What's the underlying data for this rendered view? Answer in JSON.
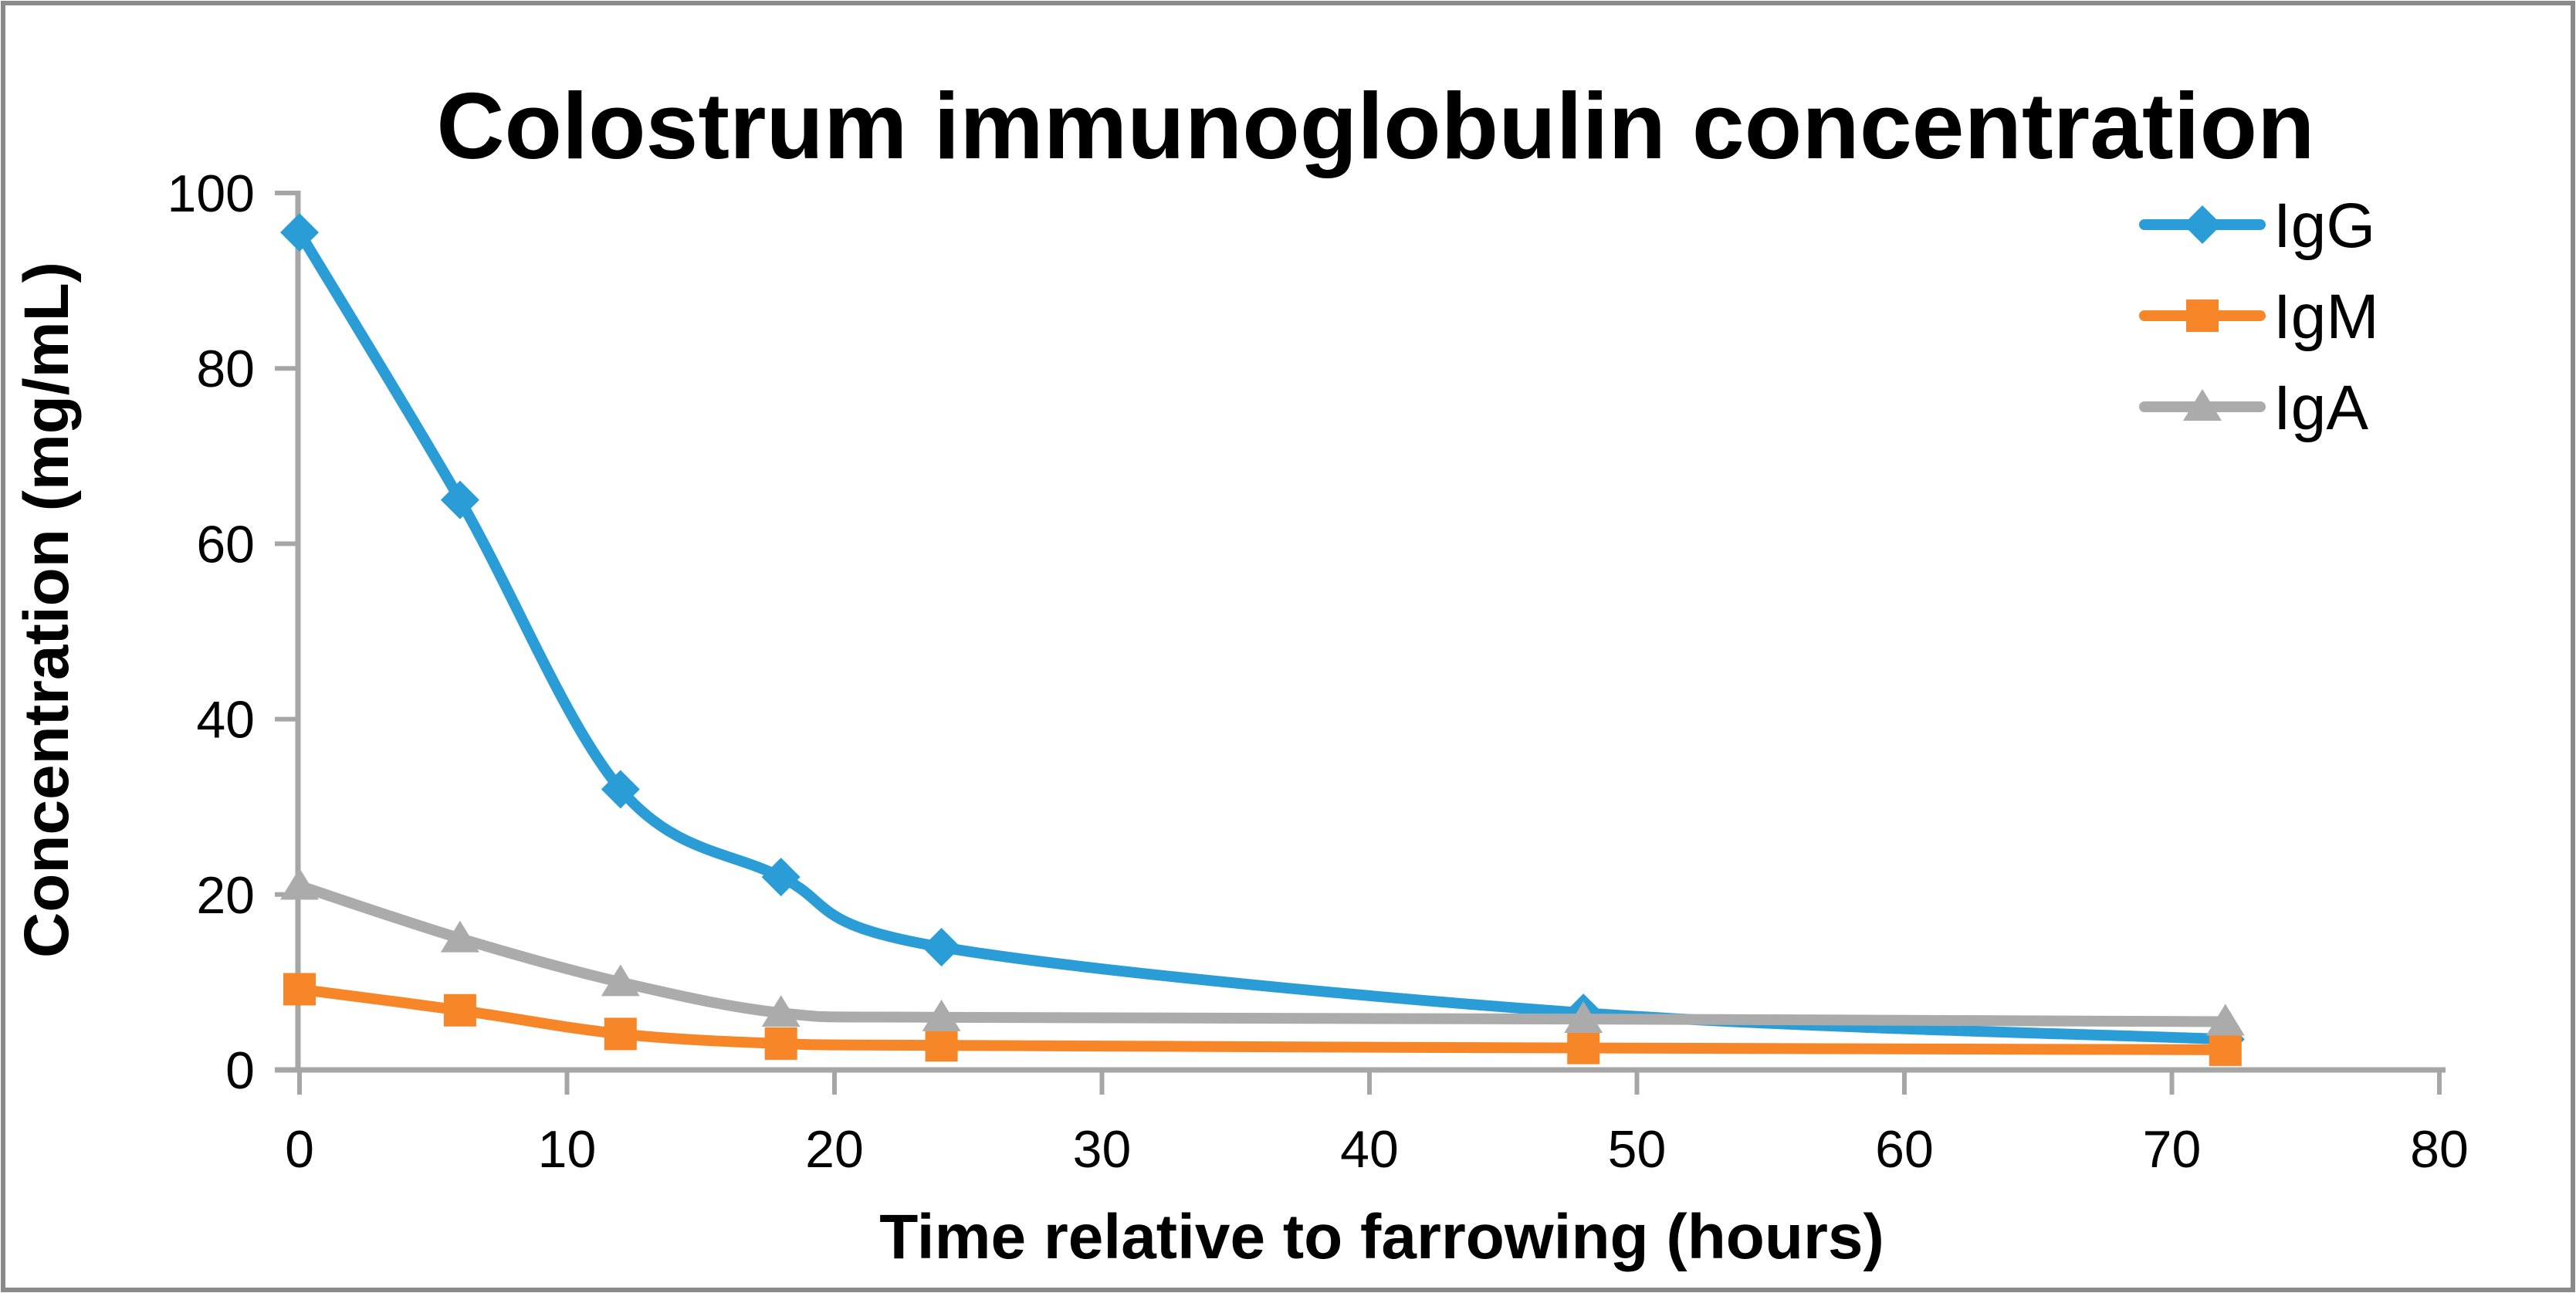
{
  "frame": {
    "border_color": "#8A8A8A",
    "background": "#FFFFFF"
  },
  "chart_data": {
    "type": "line",
    "title": "Colostrum immunoglobulin concentration",
    "xlabel": "Time relative to farrowing (hours)",
    "ylabel": "Concentration (mg/mL)",
    "x": [
      0,
      6,
      12,
      18,
      24,
      48,
      72
    ],
    "series": [
      {
        "name": "IgG",
        "marker": "diamond",
        "color": "#2A9DD7",
        "values": [
          95.5,
          65,
          32,
          22,
          14,
          6.5,
          3.5
        ]
      },
      {
        "name": "IgM",
        "marker": "square",
        "color": "#F68627",
        "values": [
          9.2,
          6.8,
          4.1,
          3.0,
          2.8,
          2.5,
          2.3
        ]
      },
      {
        "name": "IgA",
        "marker": "triangle",
        "color": "#ABABAB",
        "values": [
          21,
          15,
          10,
          6.5,
          6,
          5.8,
          5.5
        ]
      }
    ],
    "xlim": [
      0,
      80
    ],
    "ylim": [
      0,
      100
    ],
    "x_ticks": [
      0,
      10,
      20,
      30,
      40,
      50,
      60,
      70,
      80
    ],
    "y_ticks": [
      0,
      20,
      40,
      60,
      80,
      100
    ],
    "grid": false,
    "legend_position": "top-right",
    "axis_color": "#A6A6A6",
    "text_color": "#000000"
  }
}
